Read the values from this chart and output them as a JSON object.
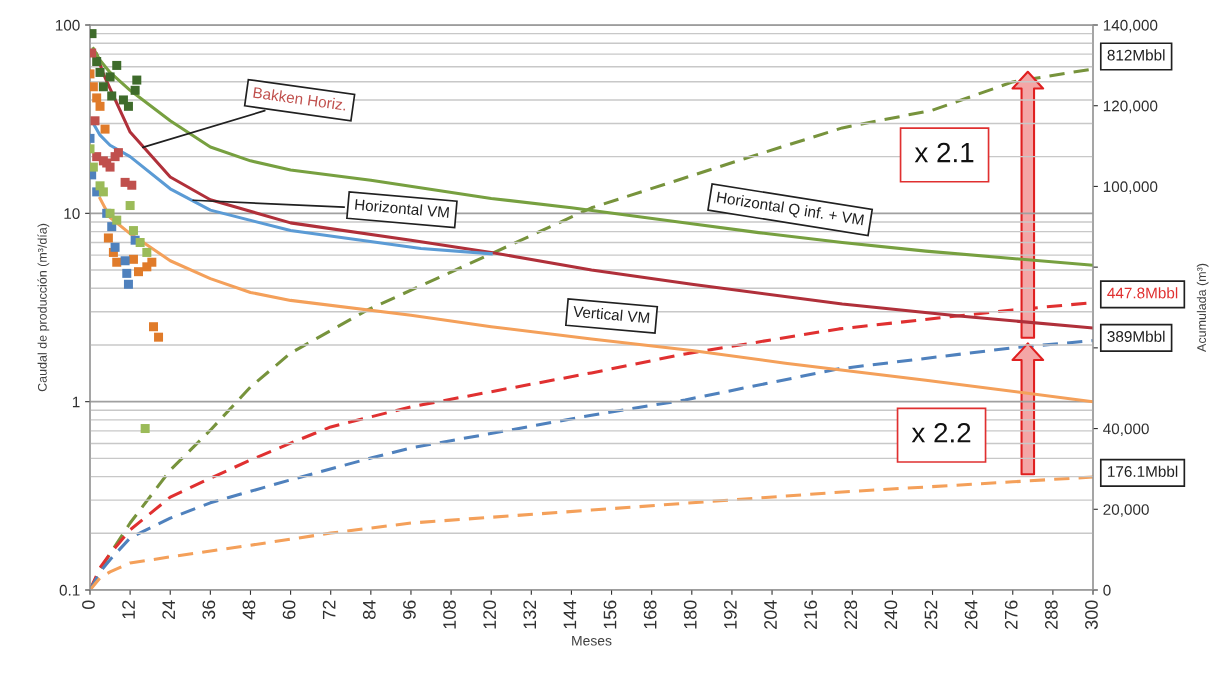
{
  "chart_data": {
    "type": "line",
    "xlabel": "Meses",
    "ylabel": "Caudal de producción (m³/día)",
    "y2label": "Acumulada (m³)",
    "log": "y",
    "grid": "y",
    "legend": false,
    "xlim": [
      0,
      300
    ],
    "xticks": [
      0,
      12,
      24,
      36,
      48,
      60,
      72,
      84,
      96,
      108,
      120,
      132,
      144,
      156,
      168,
      180,
      192,
      204,
      216,
      228,
      240,
      252,
      264,
      276,
      288,
      300
    ],
    "ylim": [
      0.1,
      100
    ],
    "yticks": [
      0.1,
      1,
      10,
      100
    ],
    "y2lim": [
      0,
      140000
    ],
    "y2ticks": [
      0,
      {
        "value": 20000,
        "label": "20,000"
      },
      {
        "value": 40000,
        "label": "40,000"
      },
      {
        "value": 60000,
        "label": null
      },
      {
        "value": 80000,
        "label": null
      },
      {
        "value": 100000,
        "label": "100,000"
      },
      {
        "value": 120000,
        "label": "120,000"
      },
      {
        "value": 140000,
        "label": "140,000"
      }
    ],
    "annotations": [
      "x 2.1",
      "x 2.2"
    ],
    "series": [
      {
        "type": "scatter",
        "marker": "square",
        "color": "#3e6b2b",
        "x": [
          0.6,
          2,
          3,
          4,
          6,
          6.5,
          8,
          10,
          11.5,
          13.5,
          14
        ],
        "values": [
          90,
          64,
          56,
          47,
          53,
          42,
          61,
          40,
          37,
          45,
          51
        ]
      },
      {
        "type": "scatter",
        "marker": "square",
        "color": "#c0504d",
        "x": [
          0.5,
          1.5,
          2,
          4,
          5,
          6,
          7.5,
          8.5,
          10.5,
          12.5
        ],
        "values": [
          71,
          31,
          20,
          19,
          18.5,
          17.6,
          20,
          21,
          14.6,
          14.1
        ]
      },
      {
        "type": "scatter",
        "marker": "square",
        "color": "#e07b2a",
        "x": [
          0,
          1,
          2,
          3,
          4.5,
          5.5,
          7,
          8,
          13,
          14.5,
          17,
          18.5,
          19,
          20.5
        ],
        "values": [
          55,
          47,
          41,
          37,
          28,
          7.4,
          6.2,
          5.5,
          5.7,
          4.9,
          5.2,
          5.5,
          2.5,
          2.2
        ]
      },
      {
        "type": "scatter",
        "marker": "square",
        "color": "#4f81bd",
        "x": [
          0,
          0.5,
          2,
          5,
          6.5,
          7.5,
          10.5,
          11,
          11.5,
          13.5
        ],
        "values": [
          25,
          16,
          13,
          10,
          8.5,
          6.6,
          5.6,
          4.8,
          4.2,
          7.2
        ]
      },
      {
        "type": "scatter",
        "marker": "square",
        "color": "#9bbb59",
        "x": [
          0,
          1,
          3,
          4,
          6,
          8,
          12,
          13,
          15,
          17,
          16.5
        ],
        "values": [
          22,
          17.6,
          14,
          13,
          10,
          9.2,
          11,
          8.1,
          7,
          6.2,
          0.72
        ]
      },
      {
        "name": "Bakken Horiz.",
        "line_style": "solid",
        "color": "#b0303a",
        "x": [
          2,
          4,
          6,
          12,
          24,
          36,
          60,
          96,
          120,
          150,
          180,
          225,
          260,
          300
        ],
        "values": [
          70,
          55,
          46,
          27,
          15.6,
          11.8,
          8.9,
          7.2,
          6.2,
          5,
          4.2,
          3.3,
          2.85,
          2.46
        ]
      },
      {
        "name": "Horizontal VM",
        "line_style": "solid",
        "color": "#5b9bd5",
        "x": [
          1,
          3,
          6,
          12,
          24,
          36,
          60,
          99,
          120
        ],
        "values": [
          30,
          26,
          23,
          20,
          13.5,
          10.4,
          8.1,
          6.5,
          6.1
        ]
      },
      {
        "name": "Horizontal Q inf. + VM",
        "line_style": "solid",
        "color": "#77a040",
        "x": [
          1,
          3,
          6,
          12,
          24,
          36,
          48,
          60,
          84,
          120,
          144,
          180,
          200,
          225,
          250,
          300
        ],
        "values": [
          75,
          65,
          56,
          45,
          31,
          22.5,
          19,
          17,
          15,
          12,
          10.7,
          8.8,
          7.9,
          7,
          6.3,
          5.3
        ]
      },
      {
        "name": "Vertical VM",
        "line_style": "solid",
        "color": "#f4a05a",
        "x": [
          3,
          6,
          12,
          15,
          24,
          36,
          48,
          60,
          96,
          120,
          150,
          180,
          208,
          250,
          300
        ],
        "values": [
          12,
          9.5,
          7.8,
          7.2,
          5.6,
          4.5,
          3.8,
          3.45,
          2.88,
          2.5,
          2.15,
          1.87,
          1.6,
          1.3,
          1.0
        ]
      },
      {
        "name": "812Mbbl",
        "axis": "y2",
        "line_style": "dashed",
        "color": "#77933c",
        "x": [
          0,
          3,
          6,
          12,
          24,
          36,
          48,
          60,
          83,
          120,
          150,
          200,
          225,
          252,
          276,
          300
        ],
        "values": [
          0,
          5000,
          9000,
          16600,
          29700,
          39600,
          50300,
          58700,
          69400,
          83300,
          94700,
          108000,
          114500,
          118900,
          125900,
          129100
        ]
      },
      {
        "name": "447.8Mbbl",
        "axis": "y2",
        "line_style": "dashed",
        "color": "#e03030",
        "x": [
          0,
          3,
          6,
          12,
          24,
          36,
          48,
          60,
          72,
          96,
          150,
          178,
          224,
          276,
          300
        ],
        "values": [
          0,
          5500,
          9000,
          14900,
          23000,
          27700,
          32200,
          36400,
          40400,
          45400,
          53800,
          58500,
          64700,
          69400,
          71200
        ]
      },
      {
        "name": "389Mbbl",
        "axis": "y2",
        "line_style": "dashed",
        "color": "#4f81bd",
        "x": [
          0,
          3,
          6,
          12,
          24,
          36,
          60,
          84,
          96,
          150,
          178,
          224,
          276,
          300
        ],
        "values": [
          0,
          4500,
          7500,
          12900,
          17800,
          21600,
          27300,
          32700,
          35200,
          43300,
          47100,
          54800,
          60000,
          61800
        ]
      },
      {
        "name": "176.1Mbbl",
        "axis": "y2",
        "line_style": "dashed",
        "color": "#f4a05a",
        "x": [
          0,
          3,
          6,
          12,
          24,
          48,
          72,
          96,
          150,
          200,
          225,
          276,
          300
        ],
        "values": [
          0,
          3000,
          4500,
          6700,
          8200,
          11100,
          14100,
          16600,
          19800,
          22800,
          24300,
          26800,
          28000
        ]
      }
    ]
  }
}
